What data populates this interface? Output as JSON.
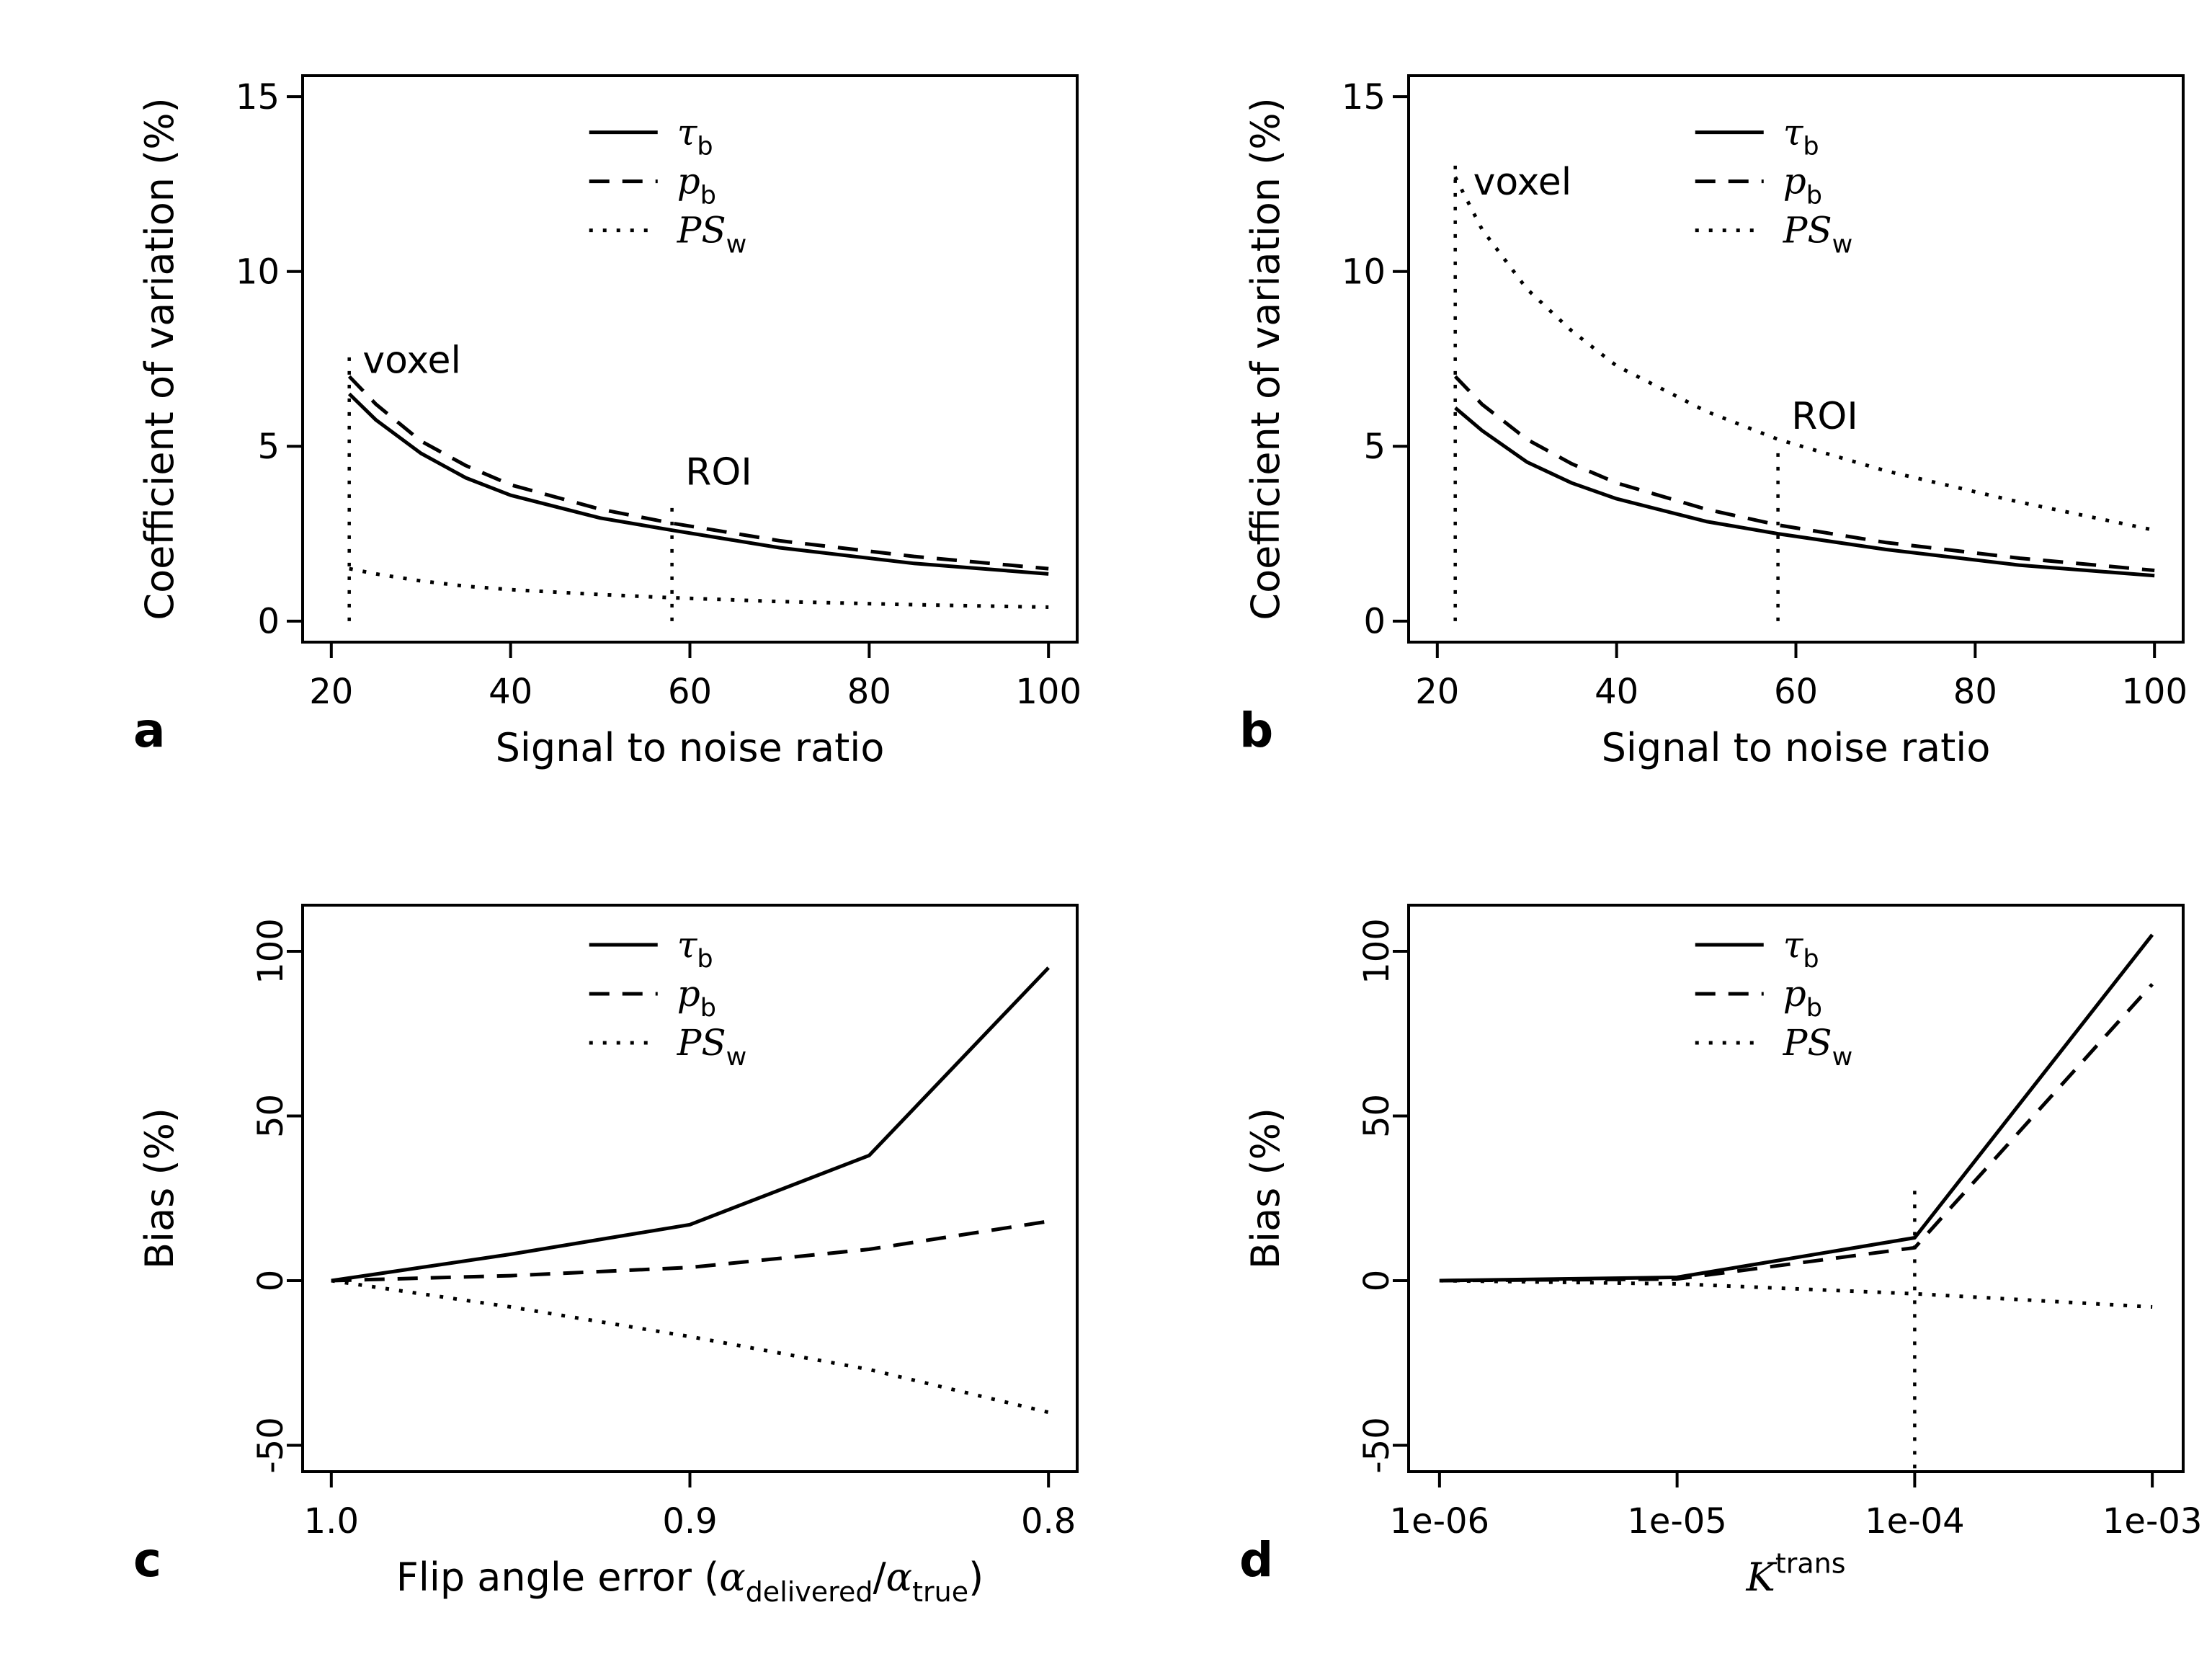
{
  "colors": {
    "foreground": "#000000",
    "background": "#ffffff"
  },
  "chart_data": [
    {
      "type": "line",
      "panel_label": "a",
      "xlabel": [
        {
          "t": "Signal to noise ratio"
        }
      ],
      "ylabel": [
        {
          "t": "Coefficient of variation (%)"
        }
      ],
      "xlim": [
        16.8,
        103.2
      ],
      "ylim": [
        -0.6,
        15.6
      ],
      "xlog": false,
      "rotate_y_ticks": false,
      "xticks": [
        {
          "v": 20,
          "l": "20"
        },
        {
          "v": 40,
          "l": "40"
        },
        {
          "v": 60,
          "l": "60"
        },
        {
          "v": 80,
          "l": "80"
        },
        {
          "v": 100,
          "l": "100"
        }
      ],
      "yticks": [
        {
          "v": 0,
          "l": "0"
        },
        {
          "v": 5,
          "l": "5"
        },
        {
          "v": 10,
          "l": "10"
        },
        {
          "v": 15,
          "l": "15"
        }
      ],
      "series": [
        {
          "name": "tau-b",
          "style": "solid",
          "x": [
            22,
            25,
            30,
            35,
            40,
            50,
            58,
            70,
            85,
            100
          ],
          "y": [
            6.5,
            5.75,
            4.8,
            4.1,
            3.6,
            2.95,
            2.6,
            2.1,
            1.65,
            1.35
          ]
        },
        {
          "name": "p-b",
          "style": "dashed",
          "x": [
            22,
            25,
            30,
            35,
            40,
            50,
            58,
            70,
            85,
            100
          ],
          "y": [
            7.0,
            6.2,
            5.15,
            4.45,
            3.9,
            3.2,
            2.8,
            2.3,
            1.85,
            1.5
          ]
        },
        {
          "name": "PS-w",
          "style": "dotted",
          "x": [
            22,
            25,
            30,
            35,
            40,
            50,
            58,
            70,
            85,
            100
          ],
          "y": [
            1.5,
            1.35,
            1.15,
            1.0,
            0.9,
            0.76,
            0.67,
            0.56,
            0.47,
            0.4
          ]
        }
      ],
      "vlines": [
        {
          "x": 22,
          "y0": 0,
          "y1": 7.8,
          "style": "dotted"
        },
        {
          "x": 58,
          "y0": 0,
          "y1": 3.5,
          "style": "dotted"
        }
      ],
      "annotations": [
        {
          "x": 23.5,
          "y": 7.1,
          "text": "voxel",
          "anchor": "start"
        },
        {
          "x": 59.5,
          "y": 3.9,
          "text": "ROI",
          "anchor": "start"
        }
      ],
      "legend": {
        "rx": 0.37,
        "ry": 0.1,
        "items": [
          {
            "style": "solid",
            "label": [
              {
                "t": "τ",
                "v": true
              },
              {
                "t": "b",
                "sub": true
              }
            ]
          },
          {
            "style": "dashed",
            "label": [
              {
                "t": "p",
                "v": true
              },
              {
                "t": "b",
                "sub": true
              }
            ]
          },
          {
            "style": "dotted",
            "label": [
              {
                "t": "PS",
                "v": true
              },
              {
                "t": "w",
                "sub": true
              }
            ]
          }
        ]
      }
    },
    {
      "type": "line",
      "panel_label": "b",
      "xlabel": [
        {
          "t": "Signal to noise ratio"
        }
      ],
      "ylabel": [
        {
          "t": "Coefficient of variation (%)"
        }
      ],
      "xlim": [
        16.8,
        103.2
      ],
      "ylim": [
        -0.6,
        15.6
      ],
      "xlog": false,
      "rotate_y_ticks": false,
      "xticks": [
        {
          "v": 20,
          "l": "20"
        },
        {
          "v": 40,
          "l": "40"
        },
        {
          "v": 60,
          "l": "60"
        },
        {
          "v": 80,
          "l": "80"
        },
        {
          "v": 100,
          "l": "100"
        }
      ],
      "yticks": [
        {
          "v": 0,
          "l": "0"
        },
        {
          "v": 5,
          "l": "5"
        },
        {
          "v": 10,
          "l": "10"
        },
        {
          "v": 15,
          "l": "15"
        }
      ],
      "series": [
        {
          "name": "tau-b",
          "style": "solid",
          "x": [
            22,
            25,
            30,
            35,
            40,
            50,
            58,
            70,
            85,
            100
          ],
          "y": [
            6.1,
            5.45,
            4.55,
            3.95,
            3.5,
            2.85,
            2.5,
            2.05,
            1.6,
            1.3
          ]
        },
        {
          "name": "p-b",
          "style": "dashed",
          "x": [
            22,
            25,
            30,
            35,
            40,
            50,
            58,
            70,
            85,
            100
          ],
          "y": [
            7.0,
            6.2,
            5.2,
            4.5,
            3.95,
            3.2,
            2.75,
            2.25,
            1.8,
            1.45
          ]
        },
        {
          "name": "PS-w",
          "style": "dotted",
          "x": [
            22,
            25,
            30,
            35,
            40,
            50,
            58,
            70,
            85,
            100
          ],
          "y": [
            12.7,
            11.2,
            9.5,
            8.3,
            7.3,
            6.0,
            5.2,
            4.3,
            3.4,
            2.6
          ]
        }
      ],
      "vlines": [
        {
          "x": 22,
          "y0": 0,
          "y1": 13.2,
          "style": "dotted"
        },
        {
          "x": 58,
          "y0": 0,
          "y1": 5.0,
          "style": "dotted"
        }
      ],
      "annotations": [
        {
          "x": 24.0,
          "y": 12.2,
          "text": "voxel",
          "anchor": "start"
        },
        {
          "x": 59.5,
          "y": 5.5,
          "text": "ROI",
          "anchor": "start"
        }
      ],
      "legend": {
        "rx": 0.37,
        "ry": 0.1,
        "items": [
          {
            "style": "solid",
            "label": [
              {
                "t": "τ",
                "v": true
              },
              {
                "t": "b",
                "sub": true
              }
            ]
          },
          {
            "style": "dashed",
            "label": [
              {
                "t": "p",
                "v": true
              },
              {
                "t": "b",
                "sub": true
              }
            ]
          },
          {
            "style": "dotted",
            "label": [
              {
                "t": "PS",
                "v": true
              },
              {
                "t": "w",
                "sub": true
              }
            ]
          }
        ]
      }
    },
    {
      "type": "line",
      "panel_label": "c",
      "xlabel": [
        {
          "t": "Flip angle error ("
        },
        {
          "t": "α",
          "v": true
        },
        {
          "t": "delivered",
          "sub": true
        },
        {
          "t": "/"
        },
        {
          "t": "α",
          "v": true
        },
        {
          "t": "true",
          "sub": true
        },
        {
          "t": ")"
        }
      ],
      "ylabel": [
        {
          "t": "Bias (%)"
        }
      ],
      "xlim": [
        1.008,
        0.792
      ],
      "ylim": [
        -58,
        114
      ],
      "xlog": false,
      "rotate_y_ticks": true,
      "xticks": [
        {
          "v": 1.0,
          "l": "1.0"
        },
        {
          "v": 0.9,
          "l": "0.9"
        },
        {
          "v": 0.8,
          "l": "0.8"
        }
      ],
      "yticks": [
        {
          "v": -50,
          "l": "-50"
        },
        {
          "v": 0,
          "l": "0"
        },
        {
          "v": 50,
          "l": "50"
        },
        {
          "v": 100,
          "l": "100"
        }
      ],
      "series": [
        {
          "name": "tau-b",
          "style": "solid",
          "x": [
            1.0,
            0.95,
            0.9,
            0.85,
            0.8
          ],
          "y": [
            0,
            8,
            17,
            38,
            95
          ]
        },
        {
          "name": "p-b",
          "style": "dashed",
          "x": [
            1.0,
            0.95,
            0.9,
            0.85,
            0.8
          ],
          "y": [
            0,
            1.5,
            4,
            9.5,
            18
          ]
        },
        {
          "name": "PS-w",
          "style": "dotted",
          "x": [
            1.0,
            0.95,
            0.9,
            0.85,
            0.8
          ],
          "y": [
            0,
            -8,
            -17,
            -27,
            -40
          ]
        }
      ],
      "vlines": [],
      "annotations": [],
      "legend": {
        "rx": 0.37,
        "ry": 0.07,
        "items": [
          {
            "style": "solid",
            "label": [
              {
                "t": "τ",
                "v": true
              },
              {
                "t": "b",
                "sub": true
              }
            ]
          },
          {
            "style": "dashed",
            "label": [
              {
                "t": "p",
                "v": true
              },
              {
                "t": "b",
                "sub": true
              }
            ]
          },
          {
            "style": "dotted",
            "label": [
              {
                "t": "PS",
                "v": true
              },
              {
                "t": "w",
                "sub": true
              }
            ]
          }
        ]
      }
    },
    {
      "type": "line",
      "panel_label": "d",
      "xlabel": [
        {
          "t": "K",
          "v": true
        },
        {
          "t": "trans",
          "sup": true
        }
      ],
      "ylabel": [
        {
          "t": "Bias (%)"
        }
      ],
      "xlim": [
        -6.13,
        -2.87
      ],
      "ylim": [
        -58,
        114
      ],
      "xlog": true,
      "rotate_y_ticks": true,
      "xticks": [
        {
          "v": 1e-06,
          "l": "1e-06"
        },
        {
          "v": 1e-05,
          "l": "1e-05"
        },
        {
          "v": 0.0001,
          "l": "1e-04"
        },
        {
          "v": 0.001,
          "l": "1e-03"
        }
      ],
      "yticks": [
        {
          "v": -50,
          "l": "-50"
        },
        {
          "v": 0,
          "l": "0"
        },
        {
          "v": 50,
          "l": "50"
        },
        {
          "v": 100,
          "l": "100"
        }
      ],
      "series": [
        {
          "name": "tau-b",
          "style": "solid",
          "x": [
            1e-06,
            1e-05,
            0.0001,
            0.001
          ],
          "y": [
            0,
            1,
            13,
            105
          ]
        },
        {
          "name": "p-b",
          "style": "dashed",
          "x": [
            1e-06,
            1e-05,
            0.0001,
            0.001
          ],
          "y": [
            0,
            0.5,
            10,
            90
          ]
        },
        {
          "name": "PS-w",
          "style": "dotted",
          "x": [
            1e-06,
            1e-05,
            0.0001,
            0.001
          ],
          "y": [
            0,
            -1,
            -4,
            -8
          ]
        }
      ],
      "vlines": [
        {
          "x": 0.0001,
          "y0": -57,
          "y1": 28,
          "style": "dotted"
        }
      ],
      "annotations": [],
      "legend": {
        "rx": 0.37,
        "ry": 0.07,
        "items": [
          {
            "style": "solid",
            "label": [
              {
                "t": "τ",
                "v": true
              },
              {
                "t": "b",
                "sub": true
              }
            ]
          },
          {
            "style": "dashed",
            "label": [
              {
                "t": "p",
                "v": true
              },
              {
                "t": "b",
                "sub": true
              }
            ]
          },
          {
            "style": "dotted",
            "label": [
              {
                "t": "PS",
                "v": true
              },
              {
                "t": "w",
                "sub": true
              }
            ]
          }
        ]
      }
    }
  ]
}
